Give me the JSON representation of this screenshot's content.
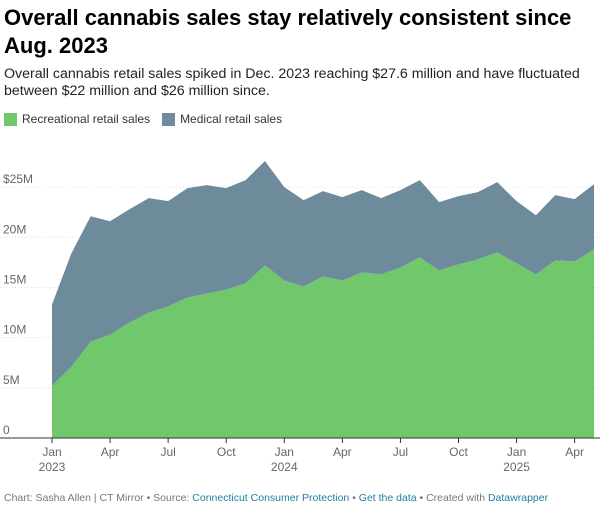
{
  "header": {
    "title": "Overall cannabis sales stay relatively consistent since Aug. 2023",
    "subtitle": "Overall cannabis retail sales spiked in Dec. 2023 reaching $27.6 million and have fluctuated between $22 million and $26 million since."
  },
  "legend": [
    {
      "label": "Recreational retail sales",
      "color": "#71c76b"
    },
    {
      "label": "Medical retail sales",
      "color": "#6e8b9b"
    }
  ],
  "chart_data": {
    "type": "area",
    "stacked": true,
    "x": [
      "2023-01",
      "2023-02",
      "2023-03",
      "2023-04",
      "2023-05",
      "2023-06",
      "2023-07",
      "2023-08",
      "2023-09",
      "2023-10",
      "2023-11",
      "2023-12",
      "2024-01",
      "2024-02",
      "2024-03",
      "2024-04",
      "2024-05",
      "2024-06",
      "2024-07",
      "2024-08",
      "2024-09",
      "2024-10",
      "2024-11",
      "2024-12",
      "2025-01",
      "2025-02",
      "2025-03",
      "2025-04",
      "2025-05"
    ],
    "series": [
      {
        "name": "Recreational retail sales",
        "color": "#71c76b",
        "values": [
          5.2,
          7.1,
          9.6,
          10.3,
          11.5,
          12.5,
          13.1,
          14.0,
          14.4,
          14.8,
          15.4,
          17.2,
          15.7,
          15.1,
          16.1,
          15.7,
          16.5,
          16.3,
          17.0,
          18.0,
          16.7,
          17.3,
          17.8,
          18.5,
          17.4,
          16.3,
          17.7,
          17.6,
          18.8
        ]
      },
      {
        "name": "Medical retail sales",
        "color": "#6e8b9b",
        "values": [
          8.1,
          11.3,
          12.5,
          11.3,
          11.3,
          11.4,
          10.5,
          10.9,
          10.8,
          10.1,
          10.3,
          10.4,
          9.3,
          8.6,
          8.5,
          8.3,
          8.2,
          7.6,
          7.7,
          7.7,
          6.8,
          6.8,
          6.7,
          7.0,
          6.2,
          5.9,
          6.5,
          6.2,
          6.5
        ]
      }
    ],
    "y_ticks": [
      "0",
      "5M",
      "10M",
      "15M",
      "20M",
      "$25M"
    ],
    "y_tick_values": [
      0,
      5,
      10,
      15,
      20,
      25
    ],
    "ylim": [
      0,
      28.7
    ],
    "x_ticks": [
      {
        "label": "Jan",
        "year": "2023",
        "index": 0
      },
      {
        "label": "Apr",
        "year": "",
        "index": 3
      },
      {
        "label": "Jul",
        "year": "",
        "index": 6
      },
      {
        "label": "Oct",
        "year": "",
        "index": 9
      },
      {
        "label": "Jan",
        "year": "2024",
        "index": 12
      },
      {
        "label": "Apr",
        "year": "",
        "index": 15
      },
      {
        "label": "Jul",
        "year": "",
        "index": 18
      },
      {
        "label": "Oct",
        "year": "",
        "index": 21
      },
      {
        "label": "Jan",
        "year": "2025",
        "index": 24
      },
      {
        "label": "Apr",
        "year": "",
        "index": 27
      }
    ],
    "grid": true,
    "legend_position": "top-left"
  },
  "footer": {
    "credit": "Chart: Sasha Allen | CT Mirror • Source: ",
    "source_link": "Connecticut Consumer Protection",
    "sep1": " • ",
    "data_link": "Get the data",
    "sep2": " • Created with ",
    "dw_link": "Datawrapper"
  }
}
